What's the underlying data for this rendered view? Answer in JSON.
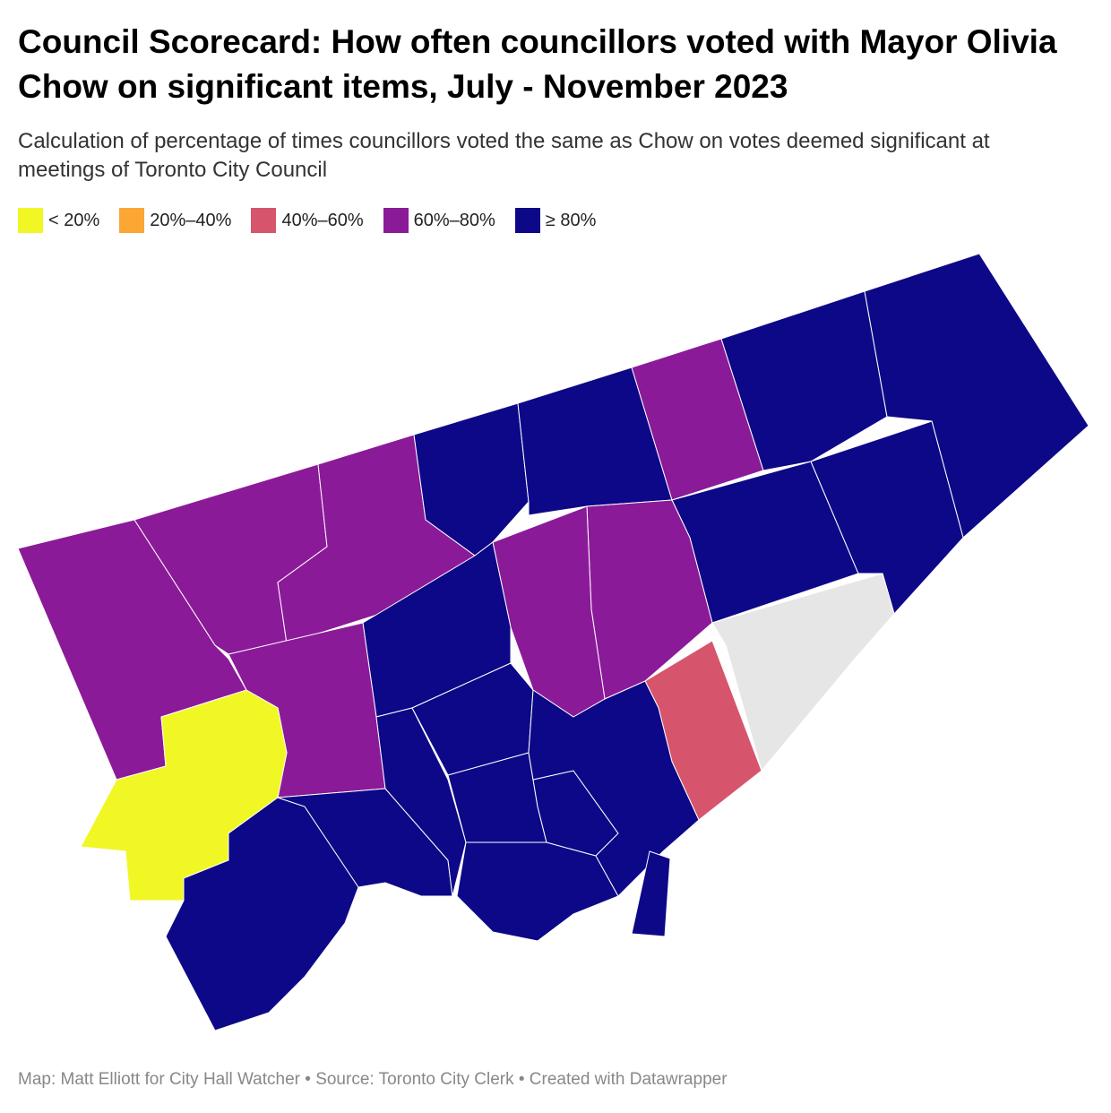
{
  "header": {
    "title": "Council Scorecard: How often councillors voted with Mayor Olivia Chow on significant items, July - November 2023",
    "subtitle": "Calculation of percentage of times councillors voted the same as Chow on votes deemed significant at meetings of Toronto City Council"
  },
  "legend": [
    {
      "label": "< 20%",
      "color": "#f0f724"
    },
    {
      "label": "20%–40%",
      "color": "#fca636"
    },
    {
      "label": "40%–60%",
      "color": "#d6556d"
    },
    {
      "label": "60%–80%",
      "color": "#8b1a98"
    },
    {
      "label": "≥ 80%",
      "color": "#0d0887"
    }
  ],
  "footer": "Map: Matt Elliott for City Hall Watcher • Source: Toronto City Clerk • Created with Datawrapper"
}
